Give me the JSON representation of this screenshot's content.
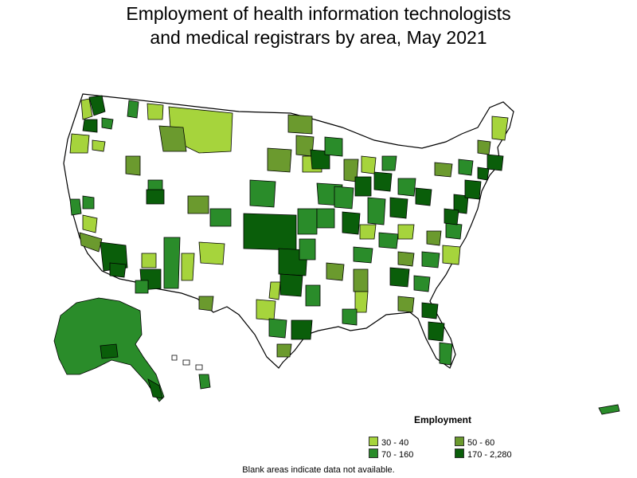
{
  "title": {
    "line1": "Employment of health information technologists",
    "line2": "and medical registrars by area, May 2021"
  },
  "legend": {
    "title": "Employment",
    "items": [
      {
        "label": "30 - 40",
        "color": "#a6d43c"
      },
      {
        "label": "50 - 60",
        "color": "#6b9a2e"
      },
      {
        "label": "70 - 160",
        "color": "#2a8c2a"
      },
      {
        "label": "170 - 2,280",
        "color": "#0a5e0a"
      }
    ]
  },
  "footnote": "Blank areas indicate data not available.",
  "colors": {
    "no_data": "#ffffff",
    "border": "#000000"
  }
}
